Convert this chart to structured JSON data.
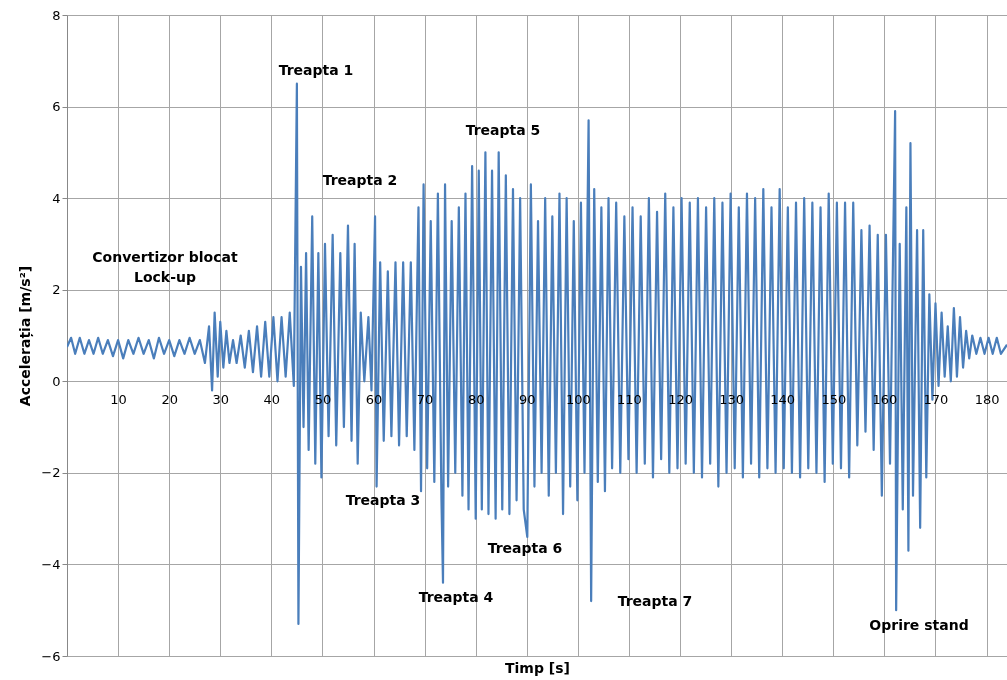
{
  "chart_data": {
    "type": "line",
    "xlabel": "Timp [s]",
    "ylabel": "Accelerația [m/s²]",
    "xlim": [
      0,
      184
    ],
    "xticks": [
      10,
      20,
      30,
      40,
      50,
      60,
      70,
      80,
      90,
      100,
      110,
      120,
      130,
      140,
      150,
      160,
      170,
      180
    ],
    "ylim": [
      -6,
      8
    ],
    "yticks": [
      -6,
      -4,
      -2,
      0,
      2,
      4,
      6,
      8
    ],
    "grid": true,
    "marker": "none",
    "line_style": "solid",
    "annotations": [
      "Convertizor blocat",
      "Lock-up",
      "Treapta 1",
      "Treapta 2",
      "Treapta 3",
      "Treapta 4",
      "Treapta 5",
      "Treapta 6",
      "Treapta 7",
      "Oprire stand"
    ],
    "series": [
      {
        "color": "#4a7ebb",
        "x": [
          0,
          0.8,
          1.6,
          2.5,
          3.4,
          4.3,
          5.2,
          6.1,
          7.0,
          8.0,
          9.0,
          10,
          11,
          12,
          13,
          14,
          15,
          16,
          17,
          18,
          19,
          20,
          21,
          22,
          23,
          24,
          25,
          26,
          27,
          27.8,
          28.4,
          28.9,
          29.5,
          30,
          30.6,
          31.2,
          31.8,
          32.5,
          33.2,
          34,
          34.8,
          35.6,
          36.4,
          37.2,
          38,
          38.8,
          39.6,
          40.4,
          41.2,
          42,
          42.8,
          43.6,
          44.4,
          45.0,
          45.3,
          45.8,
          46.3,
          46.8,
          47.3,
          48,
          48.6,
          49.2,
          49.8,
          50.5,
          51.2,
          52,
          52.7,
          53.5,
          54.2,
          55,
          55.7,
          56.3,
          56.9,
          57.5,
          58.2,
          59,
          59.6,
          60.3,
          60.6,
          61.3,
          62,
          62.8,
          63.5,
          64.3,
          65,
          65.8,
          66.5,
          67.3,
          68,
          68.8,
          69.3,
          69.8,
          70.5,
          71.2,
          71.9,
          72.6,
          73.3,
          73.6,
          74,
          74.6,
          75.3,
          76,
          76.7,
          77.4,
          78,
          78.6,
          79.3,
          80,
          80.6,
          81.2,
          81.9,
          82.5,
          83.2,
          83.9,
          84.5,
          85.2,
          85.9,
          86.6,
          87.3,
          88,
          88.7,
          89.4,
          90.1,
          90.8,
          91.5,
          92.2,
          92.9,
          93.6,
          94.3,
          95,
          95.7,
          96.4,
          97.1,
          97.8,
          98.5,
          99.2,
          99.9,
          100.6,
          101.3,
          102.1,
          102.6,
          103.2,
          103.9,
          104.6,
          105.3,
          106,
          106.7,
          107.5,
          108.3,
          109.1,
          109.9,
          110.7,
          111.5,
          112.3,
          113.1,
          113.9,
          114.7,
          115.5,
          116.3,
          117.1,
          117.9,
          118.7,
          119.5,
          120.3,
          121.1,
          121.9,
          122.7,
          123.5,
          124.3,
          125.1,
          125.9,
          126.7,
          127.5,
          128.3,
          129.1,
          129.9,
          130.7,
          131.5,
          132.3,
          133.1,
          133.9,
          134.7,
          135.5,
          136.3,
          137.1,
          137.9,
          138.7,
          139.5,
          140.3,
          141.1,
          141.9,
          142.7,
          143.5,
          144.3,
          145.1,
          145.9,
          146.7,
          147.5,
          148.3,
          149.1,
          149.9,
          150.7,
          151.5,
          152.3,
          153.1,
          153.9,
          154.7,
          155.5,
          156.3,
          157.1,
          157.9,
          158.7,
          159.5,
          160.3,
          161.1,
          162.1,
          162.3,
          163,
          163.6,
          164.3,
          164.7,
          165.1,
          165.6,
          166.4,
          167,
          167.6,
          168.2,
          168.8,
          169.4,
          170,
          170.6,
          171.2,
          171.8,
          172.4,
          173,
          173.6,
          174.2,
          174.8,
          175.4,
          176,
          176.6,
          177.2,
          178,
          178.8,
          179.6,
          180.4,
          181.2,
          182,
          182.8,
          184
        ],
        "values": [
          0.75,
          0.95,
          0.6,
          0.95,
          0.6,
          0.9,
          0.6,
          0.95,
          0.6,
          0.9,
          0.55,
          0.9,
          0.5,
          0.9,
          0.6,
          0.95,
          0.6,
          0.9,
          0.5,
          0.95,
          0.6,
          0.9,
          0.55,
          0.9,
          0.6,
          0.95,
          0.6,
          0.9,
          0.4,
          1.2,
          -0.2,
          1.5,
          0.1,
          1.3,
          0.3,
          1.1,
          0.4,
          0.9,
          0.4,
          1.0,
          0.3,
          1.1,
          0.2,
          1.2,
          0.1,
          1.3,
          0.1,
          1.4,
          0.0,
          1.4,
          0.1,
          1.5,
          -0.1,
          6.5,
          -5.3,
          2.5,
          -1.0,
          2.8,
          -1.5,
          3.6,
          -1.8,
          2.8,
          -2.1,
          3.0,
          -1.2,
          3.2,
          -1.4,
          2.8,
          -1.0,
          3.4,
          -1.3,
          3.0,
          -1.8,
          1.5,
          0.0,
          1.4,
          -0.2,
          3.6,
          -2.3,
          2.6,
          -1.3,
          2.4,
          -1.2,
          2.6,
          -1.4,
          2.6,
          -1.2,
          2.6,
          -1.5,
          3.8,
          -2.4,
          4.3,
          -1.9,
          3.5,
          -2.2,
          4.1,
          -2.6,
          -4.4,
          4.3,
          -2.3,
          3.5,
          -2.0,
          3.8,
          -2.5,
          4.1,
          -2.8,
          4.7,
          -3.0,
          4.6,
          -2.8,
          5.0,
          -2.9,
          4.6,
          -3.0,
          5.0,
          -2.8,
          4.5,
          -2.9,
          4.2,
          -2.6,
          4.0,
          -2.8,
          -3.4,
          4.3,
          -2.3,
          3.5,
          -2.0,
          4.0,
          -2.5,
          3.6,
          -2.0,
          4.1,
          -2.9,
          4.0,
          -2.3,
          3.5,
          -2.6,
          3.9,
          -2.0,
          5.7,
          -4.8,
          4.2,
          -2.2,
          3.8,
          -2.4,
          4.0,
          -1.9,
          3.9,
          -2.0,
          3.6,
          -1.7,
          3.8,
          -2.0,
          3.6,
          -1.8,
          4.0,
          -2.1,
          3.7,
          -1.7,
          4.1,
          -2.0,
          3.8,
          -1.9,
          4.0,
          -1.8,
          3.9,
          -2.0,
          4.0,
          -2.1,
          3.8,
          -1.8,
          4.0,
          -2.3,
          3.9,
          -2.0,
          4.1,
          -1.9,
          3.8,
          -2.1,
          4.1,
          -1.8,
          4.0,
          -2.1,
          4.2,
          -1.9,
          3.8,
          -2.0,
          4.2,
          -1.9,
          3.8,
          -2.0,
          3.9,
          -2.1,
          4.0,
          -1.9,
          3.9,
          -2.0,
          3.8,
          -2.2,
          4.1,
          -1.8,
          3.9,
          -1.9,
          3.9,
          -2.1,
          3.9,
          -1.4,
          3.3,
          -1.1,
          3.4,
          -1.5,
          3.2,
          -2.5,
          3.2,
          -1.8,
          5.9,
          -5.0,
          3.0,
          -2.8,
          3.8,
          -3.7,
          5.2,
          -2.5,
          3.3,
          -3.2,
          3.3,
          -2.1,
          1.9,
          -0.4,
          1.7,
          -0.1,
          1.5,
          0.1,
          1.2,
          0.0,
          1.6,
          0.1,
          1.4,
          0.3,
          1.1,
          0.5,
          1.0,
          0.6,
          0.95,
          0.6,
          0.95,
          0.6,
          0.95,
          0.6,
          0.8
        ]
      }
    ]
  }
}
